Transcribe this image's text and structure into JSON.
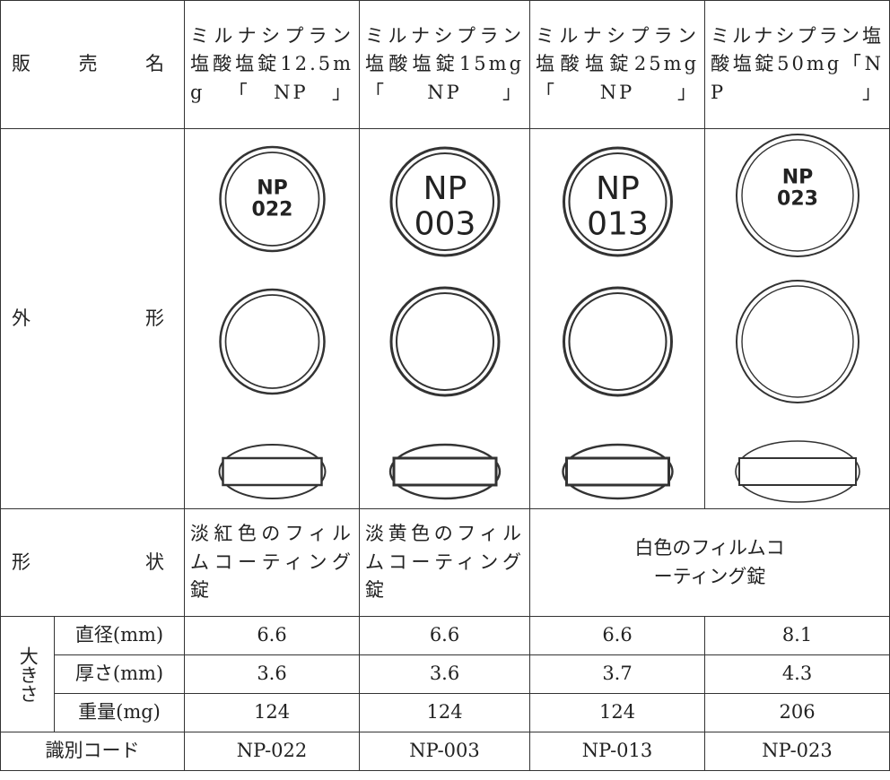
{
  "table": {
    "header": {
      "label": "販 売 名",
      "names": [
        "ミルナシプラン塩酸塩錠12.5mg「NP」",
        "ミルナシプラン塩酸塩錠15mg「NP」",
        "ミルナシプラン塩酸塩錠25mg「NP」",
        "ミルナシプラン塩酸塩錠50mg「NP」"
      ]
    },
    "appearance": {
      "label": "外　　形",
      "imprints": [
        [
          "NP",
          "022"
        ],
        [
          "NP",
          "003"
        ],
        [
          "NP",
          "013"
        ],
        [
          "NP",
          "023"
        ]
      ]
    },
    "shape": {
      "label": "形　　状",
      "values": [
        "淡紅色のフィルムコーティング錠",
        "淡黄色のフィルムコーティング錠",
        "白色のフィルムコーティング錠"
      ]
    },
    "size": {
      "label": "大きさ",
      "rows": [
        {
          "label": "直径(mm)",
          "values": [
            6.6,
            6.6,
            6.6,
            8.1
          ]
        },
        {
          "label": "厚さ(mm)",
          "values": [
            3.6,
            3.6,
            3.7,
            4.3
          ]
        },
        {
          "label": "重量(mg)",
          "values": [
            124,
            124,
            124,
            206
          ]
        }
      ]
    },
    "code": {
      "label": "識別コード",
      "values": [
        "NP-022",
        "NP-003",
        "NP-013",
        "NP-023"
      ]
    }
  }
}
